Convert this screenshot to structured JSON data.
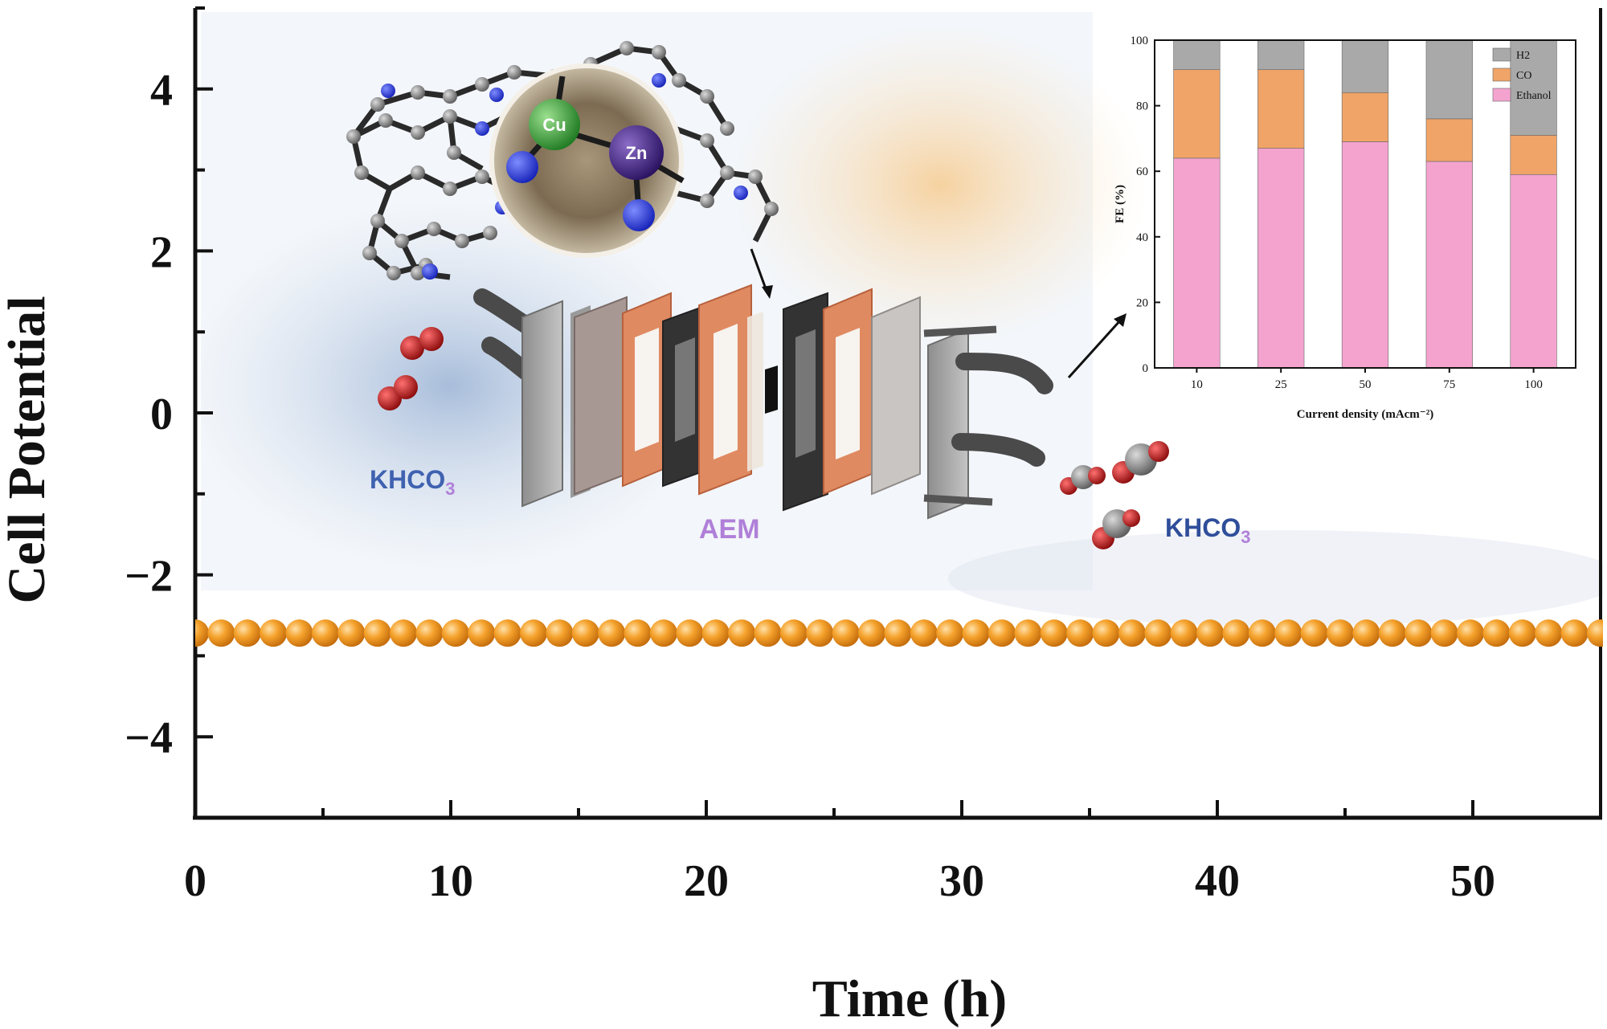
{
  "colors": {
    "ethanol": "#F4A3CF",
    "co": "#F0A468",
    "h2": "#A9A9A9",
    "ball": "#F39A1F",
    "cu": "#3DA43C",
    "zn": "#4A2A8A",
    "nitrogen": "#2A3BE0",
    "oxygen": "#C41414",
    "carbon": "#2A2A2A",
    "khco3_left": "#3F62B0",
    "khco3_right": "#2F4E9A",
    "aem": "#B080D8"
  },
  "main_chart": {
    "chart_data": {
      "type": "scatter",
      "title": "",
      "xlabel": "Time (h)",
      "ylabel": "Cell Potential",
      "xlim": [
        0,
        55
      ],
      "ylim": [
        -5,
        5
      ],
      "xticks": [
        "0",
        "10",
        "20",
        "30",
        "40",
        "50"
      ],
      "yticks": [
        "4",
        "2",
        "0",
        "−2",
        "−4"
      ],
      "x": [
        0,
        1,
        2,
        3,
        4,
        5,
        6,
        7,
        8,
        9,
        10,
        11,
        12,
        13,
        14,
        15,
        16,
        17,
        18,
        19,
        20,
        21,
        22,
        23,
        24,
        25,
        26,
        27,
        28,
        29,
        30,
        31,
        32,
        33,
        34,
        35,
        36,
        37,
        38,
        39,
        40,
        41,
        42,
        43,
        44,
        45,
        46,
        47,
        48,
        49,
        50,
        51,
        52,
        53,
        54,
        55
      ],
      "y": [
        -2.72,
        -2.72,
        -2.72,
        -2.72,
        -2.72,
        -2.72,
        -2.72,
        -2.72,
        -2.72,
        -2.72,
        -2.72,
        -2.72,
        -2.72,
        -2.72,
        -2.72,
        -2.72,
        -2.72,
        -2.72,
        -2.72,
        -2.72,
        -2.72,
        -2.72,
        -2.72,
        -2.72,
        -2.72,
        -2.72,
        -2.72,
        -2.72,
        -2.72,
        -2.72,
        -2.72,
        -2.72,
        -2.72,
        -2.72,
        -2.72,
        -2.72,
        -2.72,
        -2.72,
        -2.72,
        -2.72,
        -2.72,
        -2.72,
        -2.72,
        -2.72,
        -2.72,
        -2.72,
        -2.72,
        -2.72,
        -2.72,
        -2.72,
        -2.72,
        -2.72,
        -2.72,
        -2.72,
        -2.72,
        -2.72
      ],
      "grid": false
    }
  },
  "inset_chart": {
    "chart_data": {
      "type": "bar",
      "stacked": true,
      "xlabel": "Current density (mAcm⁻²)",
      "ylabel": "FE (%)",
      "ylim": [
        0,
        100
      ],
      "yticks": [
        "0",
        "20",
        "40",
        "60",
        "80",
        "100"
      ],
      "categories": [
        "10",
        "25",
        "50",
        "75",
        "100"
      ],
      "series": [
        {
          "name": "Ethanol",
          "values": [
            64,
            67,
            69,
            63,
            59
          ]
        },
        {
          "name": "CO",
          "values": [
            27,
            24,
            15,
            13,
            12
          ]
        },
        {
          "name": "H2",
          "values": [
            9,
            9,
            16,
            24,
            29
          ]
        }
      ],
      "legend": "top-right"
    }
  },
  "illustration": {
    "cu_label": "Cu",
    "zn_label": "Zn",
    "khco3_left": "KHCO",
    "khco3_right": "KHCO",
    "khco3_sub": "3",
    "aem_label": "AEM"
  }
}
